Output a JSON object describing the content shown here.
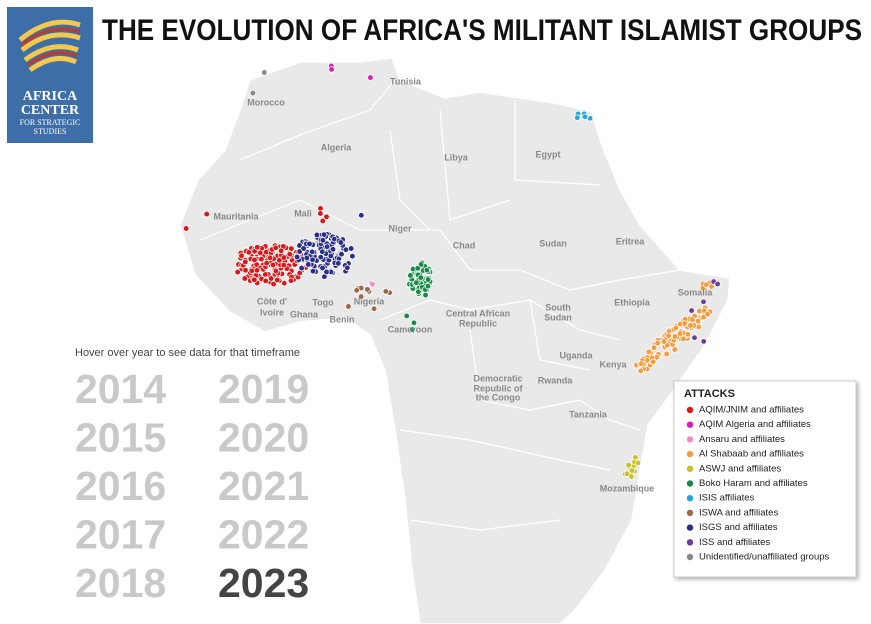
{
  "header": {
    "title": "THE EVOLUTION OF AFRICA'S MILITANT ISLAMIST GROUPS",
    "logo": [
      "AFRICA",
      "CENTER",
      "FOR STRATEGIC",
      "STUDIES"
    ]
  },
  "map": {
    "countries": [
      "Tunisia",
      "Morocco",
      "Algeria",
      "Libya",
      "Egypt",
      "Mauritania",
      "Mali",
      "Niger",
      "Chad",
      "Sudan",
      "Eritrea",
      "Côte d'",
      "Ivoire",
      "Togo",
      "Ghana",
      "Benin",
      "Nigeria",
      "Cameroon",
      "Central African",
      "Republic",
      "South",
      "Sudan",
      "Ethiopia",
      "Somalia",
      "Uganda",
      "Kenya",
      "Democratic",
      "Republic of",
      "the Congo",
      "Rwanda",
      "Tanzania",
      "Mozambique"
    ]
  },
  "timeline": {
    "instruction": "Hover over year to see data for that timeframe",
    "years": [
      {
        "label": "2014",
        "active": false
      },
      {
        "label": "2015",
        "active": false
      },
      {
        "label": "2016",
        "active": false
      },
      {
        "label": "2017",
        "active": false
      },
      {
        "label": "2018",
        "active": false
      },
      {
        "label": "2019",
        "active": false
      },
      {
        "label": "2020",
        "active": false
      },
      {
        "label": "2021",
        "active": false
      },
      {
        "label": "2022",
        "active": false
      },
      {
        "label": "2023",
        "active": true
      }
    ]
  },
  "legend": {
    "title": "ATTACKS",
    "items": [
      {
        "name": "AQIM/JNIM and affiliates",
        "color": "#d7191c"
      },
      {
        "name": "AQIM Algeria and affiliates",
        "color": "#d61fb4"
      },
      {
        "name": "Ansaru and affiliates",
        "color": "#e98fc6"
      },
      {
        "name": "Al Shabaab and affiliates",
        "color": "#f39c3f"
      },
      {
        "name": "ASWJ and affiliates",
        "color": "#c8c22a"
      },
      {
        "name": "Boko Haram and affiliates",
        "color": "#1a8a4a"
      },
      {
        "name": "ISIS affiliates",
        "color": "#2aa6d6"
      },
      {
        "name": "ISWA and affiliates",
        "color": "#9a6a4a"
      },
      {
        "name": "ISGS and affiliates",
        "color": "#2b2f86"
      },
      {
        "name": "ISS and affiliates",
        "color": "#6a3f9a"
      },
      {
        "name": "Unidentified/unaffiliated groups",
        "color": "#8a8a8a"
      }
    ]
  }
}
